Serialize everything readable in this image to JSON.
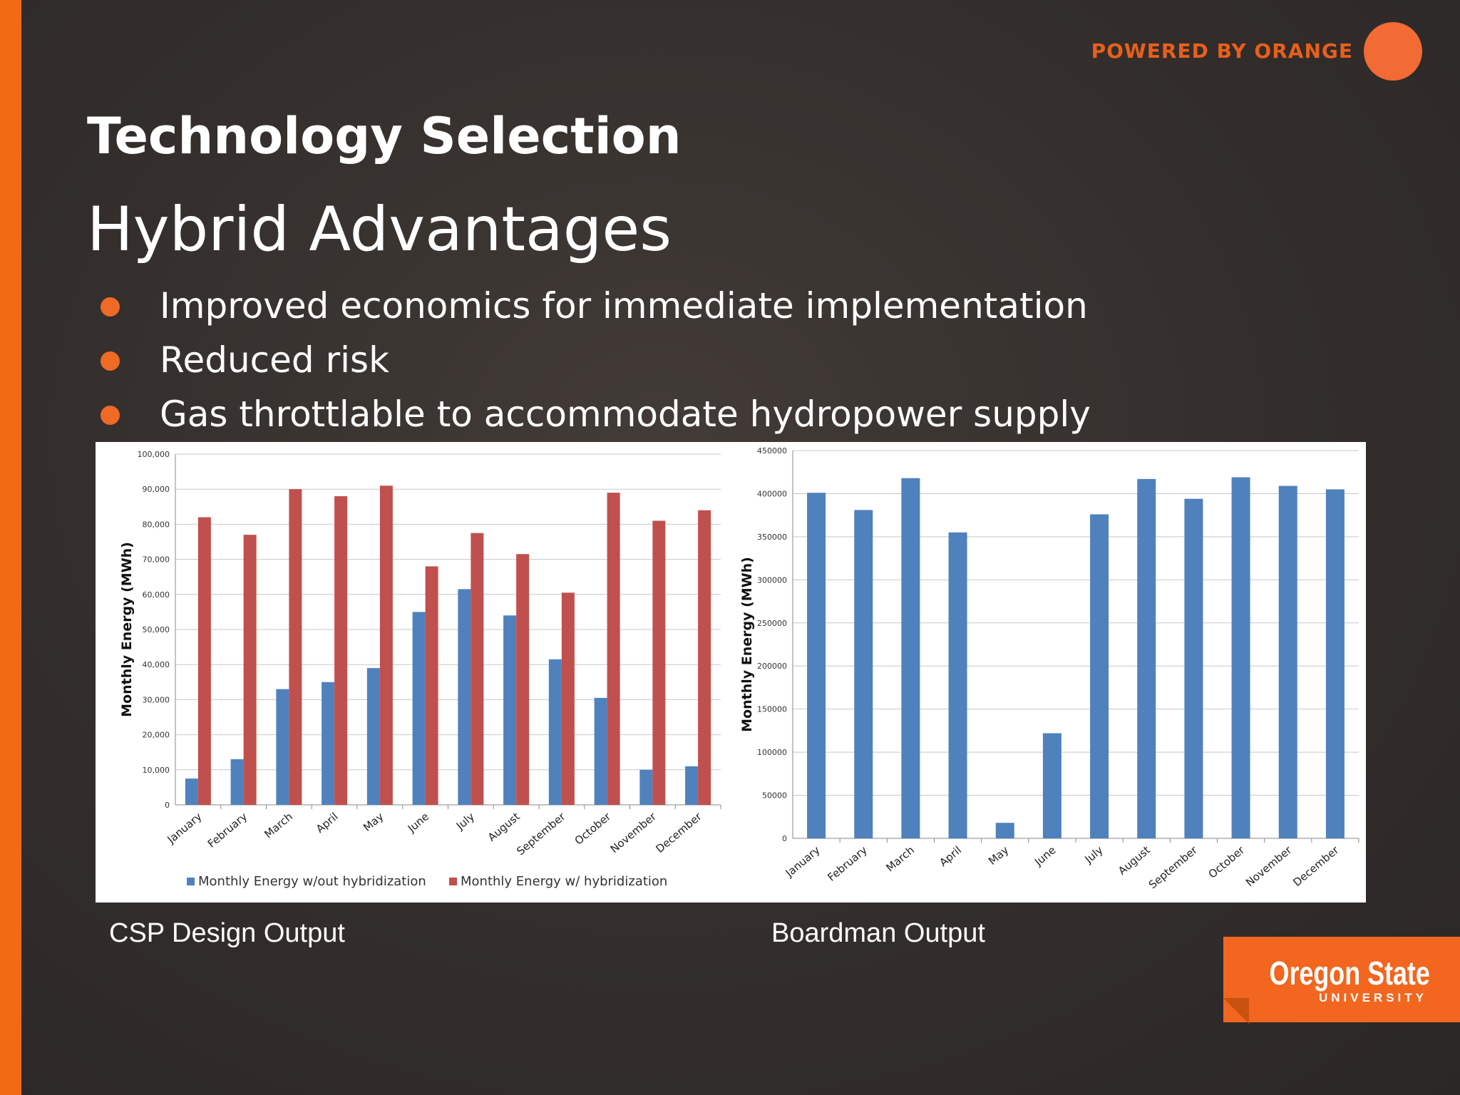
{
  "header": {
    "brand_tag": "POWERED BY ORANGE",
    "title": "Technology Selection",
    "subtitle": "Hybrid Advantages"
  },
  "bullets": [
    "Improved economics for immediate implementation",
    "Reduced risk",
    "Gas throttlable to accommodate hydropower supply"
  ],
  "captions": {
    "left": "CSP Design Output",
    "right": "Boardman Output"
  },
  "logo": {
    "name": "Oregon State",
    "sub": "UNIVERSITY"
  },
  "colors": {
    "accent": "#f26a14",
    "series_blue": "#4f81bd",
    "series_red": "#c0504d"
  },
  "chart_data": [
    {
      "type": "bar",
      "categories": [
        "January",
        "February",
        "March",
        "April",
        "May",
        "June",
        "July",
        "August",
        "September",
        "October",
        "November",
        "December"
      ],
      "series": [
        {
          "name": "Monthly Energy w/out hybridization",
          "values": [
            7500,
            13000,
            33000,
            35000,
            39000,
            55000,
            61500,
            54000,
            41500,
            30500,
            10000,
            11000
          ]
        },
        {
          "name": "Monthly Energy w/ hybridization",
          "values": [
            82000,
            77000,
            90000,
            88000,
            91000,
            68000,
            77500,
            71500,
            60500,
            89000,
            81000,
            84000
          ]
        }
      ],
      "ylabel": "Monthly Energy (MWh)",
      "ylim": [
        0,
        100000
      ],
      "yticks": [
        "0",
        "10,000",
        "20,000",
        "30,000",
        "40,000",
        "50,000",
        "60,000",
        "70,000",
        "80,000",
        "90,000",
        "100,000"
      ],
      "grid": true,
      "legend": "bottom"
    },
    {
      "type": "bar",
      "categories": [
        "January",
        "February",
        "March",
        "April",
        "May",
        "June",
        "July",
        "August",
        "September",
        "October",
        "November",
        "December"
      ],
      "series": [
        {
          "values": [
            401000,
            381000,
            418000,
            355000,
            18000,
            122000,
            376000,
            417000,
            394000,
            419000,
            409000,
            405000
          ]
        }
      ],
      "ylabel": "Monthly Energy (MWh)",
      "ylim": [
        0,
        450000
      ],
      "yticks": [
        "0",
        "50000",
        "100000",
        "150000",
        "200000",
        "250000",
        "300000",
        "350000",
        "400000",
        "450000"
      ],
      "grid": true,
      "legend": "none"
    }
  ]
}
